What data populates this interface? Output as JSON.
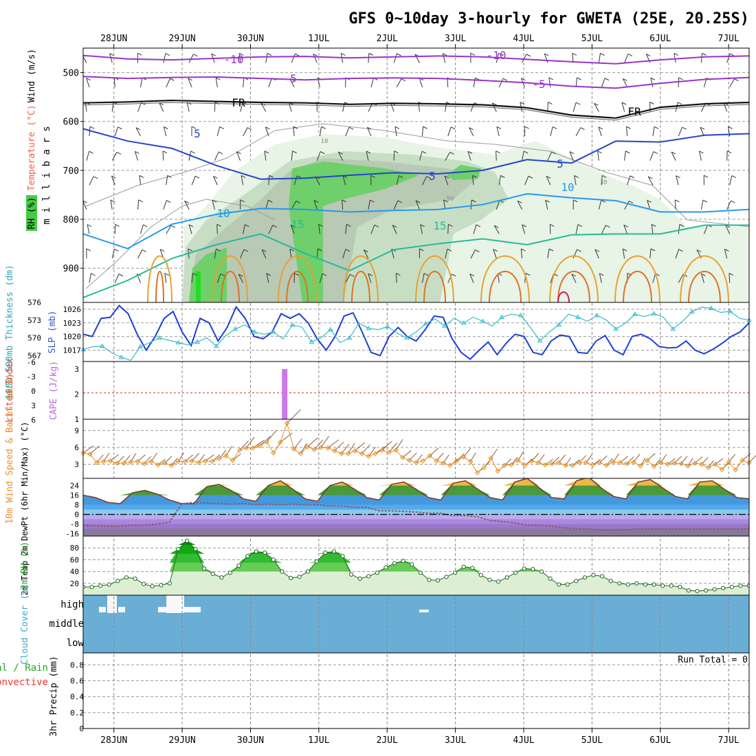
{
  "title": "GFS 0~10day 3-hourly for GWETA (25E, 20.25S)",
  "date_labels": [
    "28JUN",
    "29JUN",
    "30JUN",
    "1JUL",
    "2JUL",
    "3JUL",
    "4JUL",
    "5JUL",
    "6JUL",
    "7JUL"
  ],
  "colors": {
    "purple": "#9933cc",
    "navy": "#2244cc",
    "sky": "#2299ee",
    "teal": "#22bb99",
    "orange": "#e8a030",
    "green": "#44cc44",
    "cape": "#cc77ee",
    "cloud": "#6aaed6",
    "slp": "#1d3fd6",
    "thick": "#33bbcc",
    "wind10": "#e88c1a"
  },
  "chart_data": [
    {
      "panel": "upper-air",
      "type": "heatmap",
      "ylabel": "m i l l i b a r s",
      "side_labels": {
        "wind": "Wind (m/s)",
        "temp": "Temperature (°C)",
        "rh": "RH (%)"
      },
      "yticks": [
        500,
        600,
        700,
        800,
        900
      ],
      "ylim": [
        450,
        970
      ],
      "isotherm_labels": {
        "m10": "-10",
        "m5": "-5",
        "fr": "FR",
        "p5": "5",
        "p10": "10",
        "p15": "15"
      },
      "rh_labels": [
        "10",
        "30",
        "50"
      ],
      "isotherms": [
        {
          "label": "-10",
          "color": "#9933cc",
          "pressures": [
            465,
            472,
            474,
            471,
            468,
            467,
            470,
            468,
            466,
            468,
            473,
            478,
            482,
            474,
            468,
            466
          ]
        },
        {
          "label": "-5",
          "color": "#9933cc",
          "pressures": [
            508,
            512,
            510,
            509,
            512,
            515,
            512,
            511,
            512,
            516,
            521,
            528,
            532,
            522,
            514,
            510
          ]
        },
        {
          "label": "FR",
          "color": "#111111",
          "pressures": [
            562,
            560,
            557,
            559,
            561,
            562,
            565,
            563,
            564,
            566,
            572,
            587,
            593,
            571,
            564,
            561
          ]
        },
        {
          "label": "5",
          "color": "#2244cc",
          "pressures": [
            615,
            640,
            655,
            690,
            718,
            716,
            710,
            705,
            707,
            700,
            678,
            685,
            640,
            642,
            628,
            625
          ]
        },
        {
          "label": "10",
          "color": "#2299ee",
          "pressures": [
            830,
            860,
            810,
            790,
            778,
            780,
            785,
            782,
            780,
            770,
            748,
            756,
            762,
            785,
            785,
            780
          ]
        },
        {
          "label": "15",
          "color": "#22bb99",
          "pressures": [
            960,
            925,
            880,
            852,
            830,
            870,
            905,
            862,
            850,
            840,
            852,
            832,
            830,
            830,
            812,
            812
          ]
        }
      ]
    },
    {
      "panel": "slp-thickness",
      "type": "line",
      "ylabel_left": "1000-500mb Thickness (dm)",
      "ylabel_right": "SLP (mb)",
      "yticks_left": [
        "576",
        "573",
        "570",
        "567"
      ],
      "yticks_right": [
        "1026",
        "1023",
        "1020",
        "1017"
      ],
      "series": [
        {
          "name": "SLP (mb)",
          "values": [
            1020.5,
            1020,
            1024,
            1024.2,
            1026.8,
            1025,
            1020.5,
            1017,
            1020,
            1024,
            1025.5,
            1021,
            1018,
            1024,
            1023,
            1019,
            1022,
            1026.5,
            1024,
            1020,
            1019.5,
            1021,
            1025,
            1024,
            1025,
            1023,
            1019.5,
            1017,
            1020,
            1024.5,
            1025.2,
            1021,
            1016.5,
            1015.8,
            1020,
            1022,
            1020,
            1019,
            1021.5,
            1024.5,
            1024.2,
            1019.5,
            1016.5,
            1015,
            1017,
            1018.8,
            1016,
            1018.5,
            1020.5,
            1020,
            1016.5,
            1016,
            1019,
            1020.3,
            1020,
            1016.5,
            1016.3,
            1019,
            1020.2,
            1017,
            1016,
            1020,
            1020.5,
            1019.5,
            1017.8,
            1017.5,
            1017.6,
            1019,
            1017,
            1016.2,
            1017.2,
            1018.5,
            1020,
            1021,
            1023
          ]
        },
        {
          "name": "1000-500mb Thickness (dm)",
          "values": [
            568,
            568.5,
            568.6,
            567.5,
            566.7,
            566.2,
            568.5,
            569.2,
            570,
            569.6,
            569.2,
            568.8,
            569.3,
            570,
            568.6,
            570.4,
            571.5,
            572.2,
            571,
            570.6,
            571,
            569.8,
            572.2,
            571.8,
            569.3,
            570,
            571.4,
            569.2,
            570,
            572.5,
            571.6,
            571.4,
            571.9,
            570.8,
            570,
            571,
            572.4,
            573.2,
            572,
            573.3,
            572.5,
            573.5,
            572.8,
            572,
            573.5,
            574,
            573.8,
            571.8,
            569.5,
            571,
            572.2,
            574,
            573.5,
            572.8,
            573.8,
            573,
            571.5,
            572.5,
            574,
            573.6,
            574.1,
            573.5,
            571.5,
            572.8,
            574.4,
            575.2,
            575,
            574.3,
            574.5,
            573.3,
            573
          ]
        }
      ]
    },
    {
      "panel": "cape-li",
      "type": "bar",
      "ylabel_left": "Lifted Index",
      "ylabel_right": "CAPE (J/kg)",
      "yticks_left": [
        "-6",
        "-3",
        "0",
        "3",
        "6"
      ],
      "yticks_right": [
        "3",
        "2",
        "1"
      ],
      "bars": [
        {
          "day": 2.5,
          "value": 3
        }
      ]
    },
    {
      "panel": "wind10m",
      "type": "line",
      "ylabel": "10m Wind Speed & Barbs (m/s)",
      "yticks": [
        "9",
        "6",
        "3"
      ],
      "series": [
        {
          "name": "10m Wind Speed",
          "values": [
            5,
            4.8,
            3.3,
            3.5,
            3.6,
            3.2,
            3.2,
            3.4,
            3.5,
            3.1,
            3.5,
            2.9,
            3.2,
            2.8,
            3.5,
            3.5,
            3.6,
            3.3,
            3.6,
            3.5,
            4,
            4.5,
            3.7,
            5.5,
            5.9,
            5.9,
            6.3,
            7,
            5,
            6.9,
            10.3,
            5.7,
            4.9,
            6.1,
            5.6,
            6,
            5.9,
            5.4,
            4.9,
            4.9,
            5.4,
            4.9,
            4.4,
            4.9,
            5.5,
            5.1,
            5.5,
            4.2,
            3.7,
            3.3,
            3.6,
            4.5,
            3.6,
            3.2,
            2.8,
            3.6,
            4.3,
            3.5,
            1.5,
            2.4,
            4.1,
            1.8,
            2.8,
            2.9,
            3.7,
            2.8,
            3.6,
            3.3,
            2.9,
            3.1,
            3.3,
            2.8,
            2.8,
            3.3,
            3.3,
            2.9,
            3.3,
            2.8,
            3.4,
            3.3,
            3.1,
            3.4,
            2.7,
            3.7,
            2.6,
            3.3,
            3,
            3.2,
            3.1,
            2.7,
            3.2,
            3,
            2.4,
            3,
            2.1,
            3.4,
            2,
            3.7,
            3.3
          ]
        }
      ]
    },
    {
      "panel": "temperature",
      "type": "area",
      "ylabel": "2m Temp 2m DewPt (6hr Min/Max) (°C)",
      "yticks": [
        "24",
        "16",
        "8",
        "0",
        "-8",
        "-16"
      ],
      "series": [
        {
          "name": "2m Temp",
          "values": [
            16,
            14,
            10,
            9,
            18,
            20,
            17,
            12,
            9,
            9,
            23,
            25,
            20,
            13,
            11,
            24,
            28,
            21,
            13,
            11,
            24,
            27,
            21,
            14,
            12,
            25,
            27,
            21,
            14,
            12,
            26,
            28,
            21,
            14,
            12,
            27,
            30,
            22,
            14,
            13,
            28,
            31,
            22,
            15,
            13,
            27,
            29,
            22,
            15,
            13,
            27,
            28,
            21,
            14,
            13
          ]
        },
        {
          "name": "2m DewPt",
          "values": [
            -9,
            -9.5,
            -10,
            -10,
            -9,
            -9,
            -8,
            -6.5,
            9,
            10,
            9.5,
            9,
            8.5,
            9,
            8,
            8.5,
            8,
            8.5,
            8,
            8,
            7,
            7,
            6,
            6,
            3,
            3,
            2.5,
            2,
            1,
            1,
            -1,
            -1,
            -2,
            -5,
            -6,
            -7,
            -9,
            -9,
            -10,
            -11,
            -12,
            -12,
            -13,
            -13,
            -13,
            -12,
            -12,
            -12,
            -12,
            -12,
            -12,
            -12,
            -12,
            -12,
            -12
          ]
        }
      ]
    },
    {
      "panel": "rh2m",
      "type": "area",
      "ylabel": "2m RH (%)",
      "yticks": [
        "80",
        "60",
        "40",
        "20"
      ],
      "series": [
        {
          "name": "2m RH",
          "values": [
            14,
            14,
            16,
            18,
            24,
            30,
            28,
            19,
            15,
            17,
            20,
            78,
            92,
            78,
            45,
            36,
            30,
            38,
            50,
            66,
            74,
            72,
            60,
            40,
            29,
            31,
            40,
            57,
            72,
            74,
            66,
            35,
            28,
            32,
            38,
            47,
            54,
            58,
            52,
            38,
            26,
            25,
            31,
            38,
            48,
            46,
            34,
            26,
            23,
            30,
            38,
            45,
            44,
            40,
            28,
            18,
            18,
            24,
            30,
            34,
            32,
            24,
            20,
            18,
            20,
            18,
            18,
            16,
            16,
            14,
            8,
            7,
            8,
            10,
            12,
            14,
            16,
            16
          ]
        }
      ]
    },
    {
      "panel": "cloud",
      "type": "area",
      "ylabel": "Cloud Cover (%)",
      "levels": [
        "high",
        "middle",
        "low"
      ]
    },
    {
      "panel": "precip",
      "type": "bar",
      "ylabel": "3hr Precip (mm)",
      "side_labels": {
        "total": "Total / Rain",
        "convective": "Convective"
      },
      "yticks": [
        "0.8",
        "0.6",
        "0.4",
        "0.2",
        "0"
      ],
      "run_total": "Run Total = 0",
      "values": []
    }
  ]
}
